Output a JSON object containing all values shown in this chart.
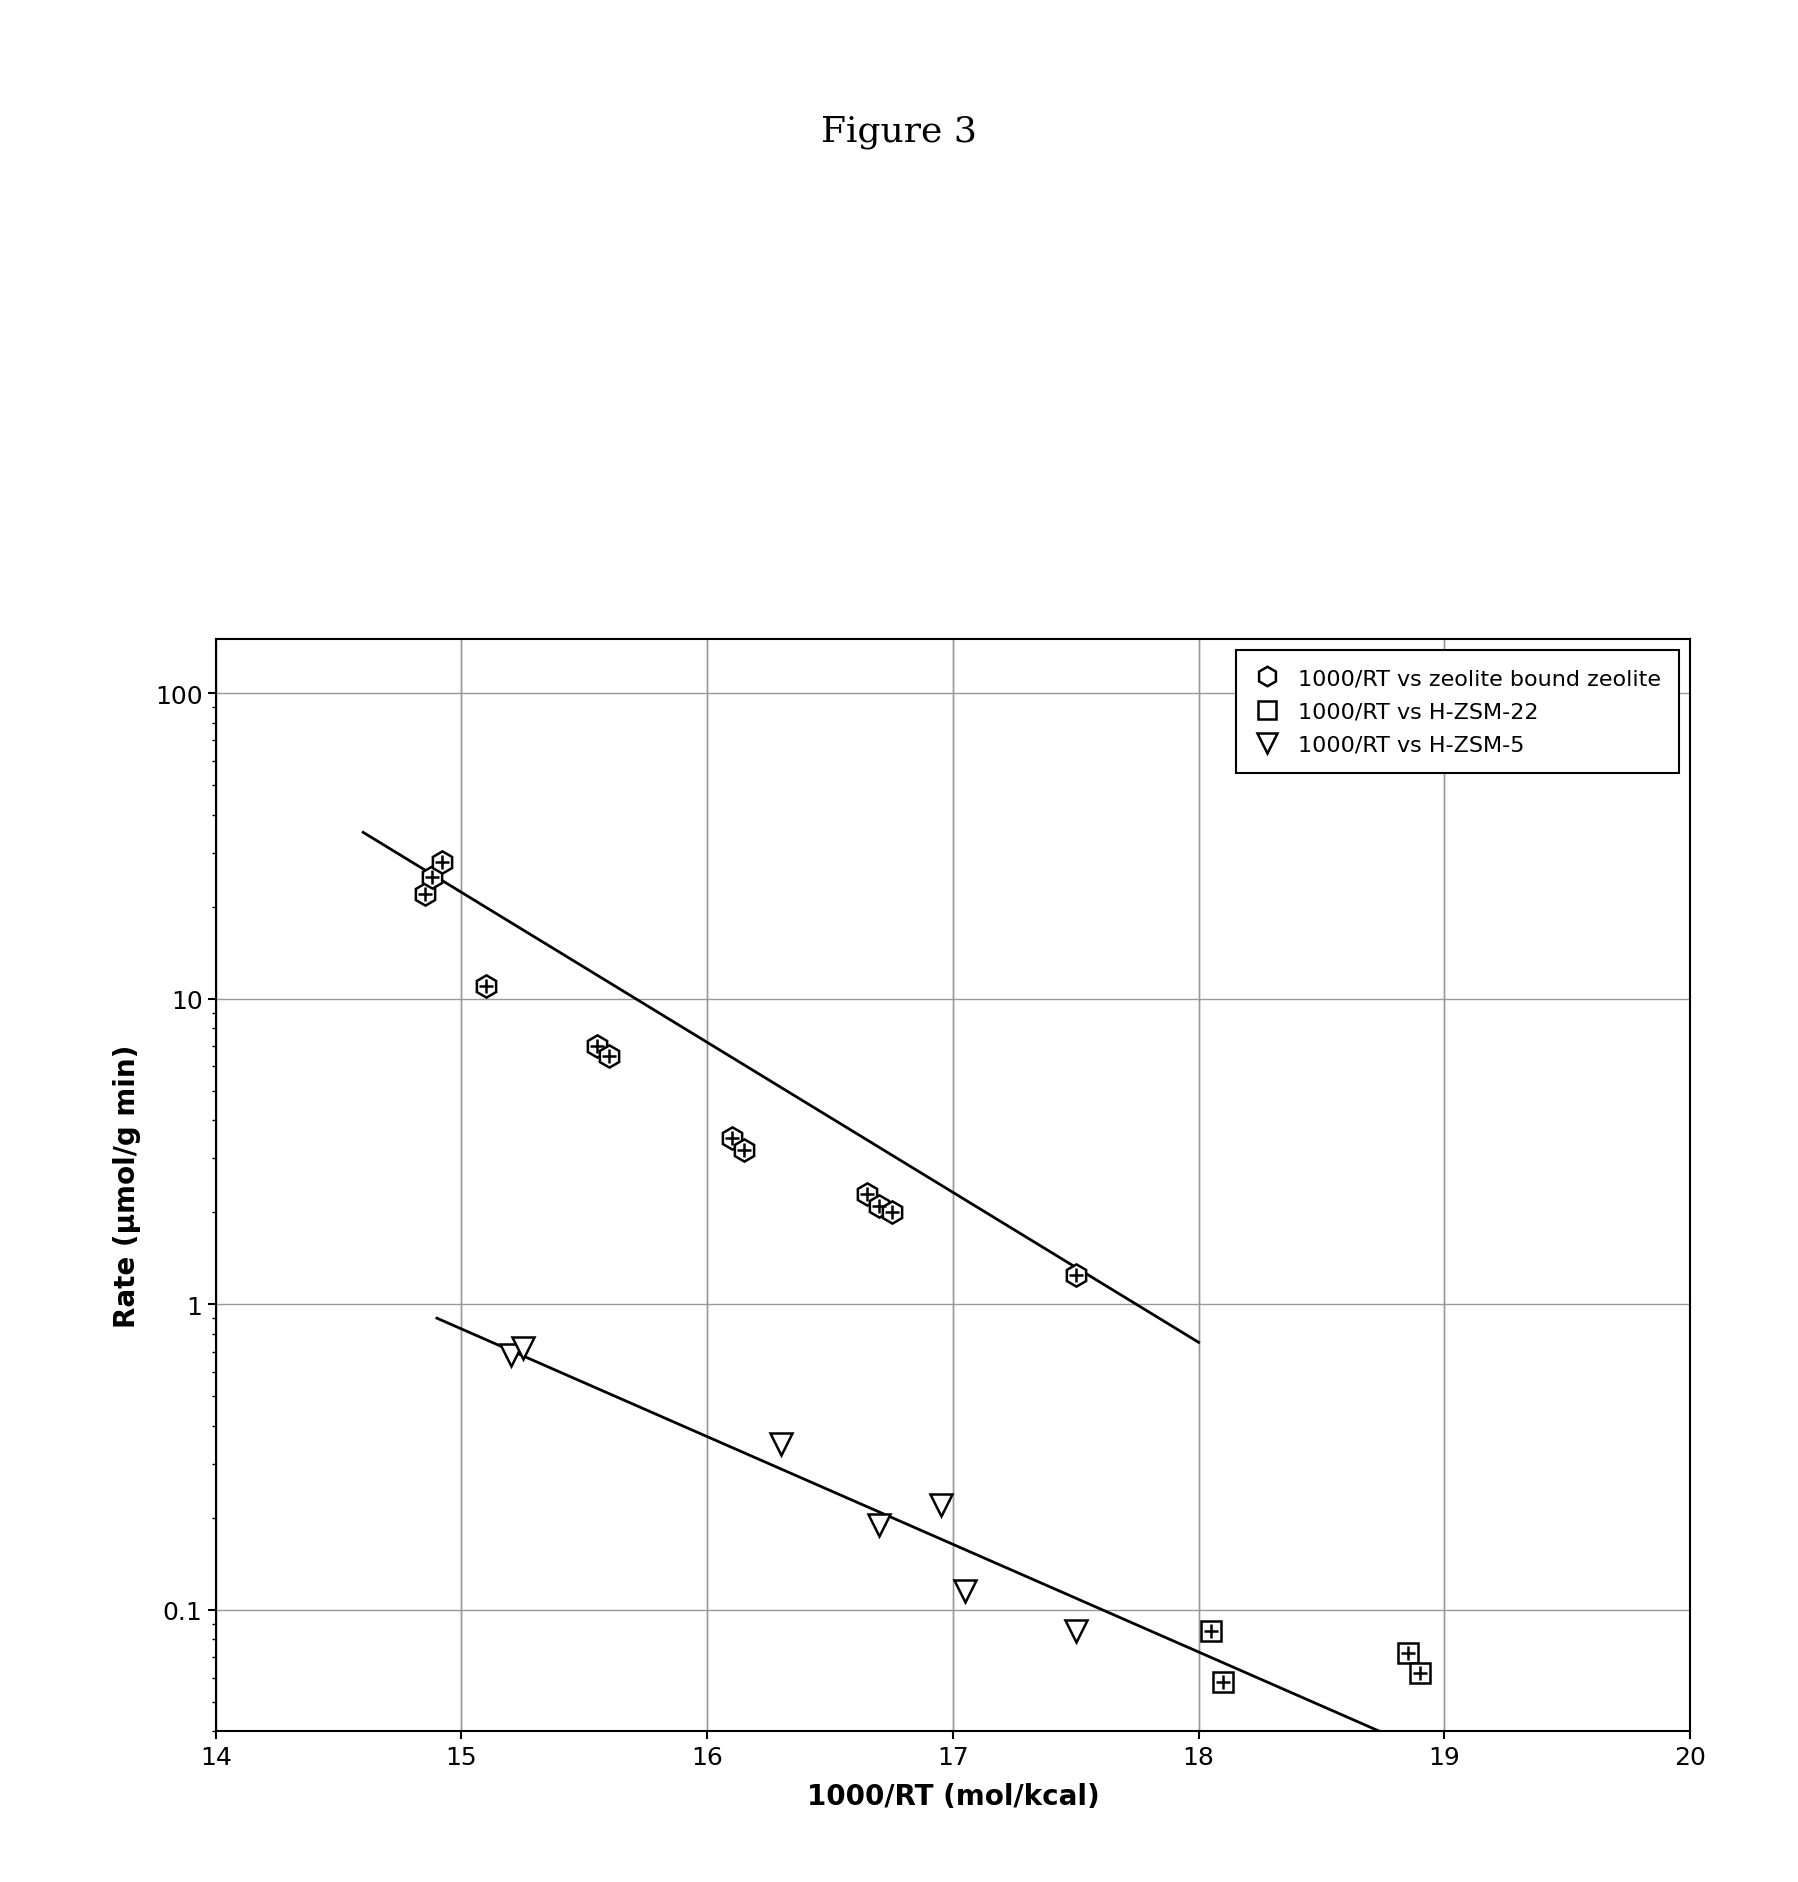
{
  "title": "Figure 3",
  "xlabel": "1000/RT (mol/kcal)",
  "ylabel": "Rate (μmol/g min)",
  "xlim": [
    14,
    20
  ],
  "ylim_log": [
    0.04,
    150
  ],
  "xmajor_ticks": [
    14,
    15,
    16,
    17,
    18,
    19,
    20
  ],
  "yticks_major": [
    0.1,
    1,
    10,
    100
  ],
  "ytick_labels": [
    "0.1",
    "1",
    "10",
    "100"
  ],
  "series_zbz": {
    "label": "1000/RT vs zeolite bound zeolite",
    "x": [
      14.85,
      14.88,
      14.92,
      15.1,
      15.55,
      15.6,
      16.1,
      16.15,
      16.65,
      16.7,
      16.75,
      17.5
    ],
    "y": [
      22,
      25,
      28,
      11,
      7.0,
      6.5,
      3.5,
      3.2,
      2.3,
      2.1,
      2.0,
      1.25
    ]
  },
  "series_zsm22": {
    "label": "1000/RT vs H-ZSM-22",
    "x": [
      18.05,
      18.1,
      18.85,
      18.9
    ],
    "y": [
      0.085,
      0.058,
      0.072,
      0.062
    ]
  },
  "series_zsm5": {
    "label": "1000/RT vs H-ZSM-5",
    "x": [
      15.2,
      15.25,
      16.3,
      16.7,
      16.95,
      17.05,
      17.5
    ],
    "y": [
      0.68,
      0.72,
      0.35,
      0.19,
      0.22,
      0.115,
      0.085
    ]
  },
  "line1_x": [
    14.6,
    18.0
  ],
  "line1_y": [
    35.0,
    0.75
  ],
  "line2_x": [
    14.9,
    18.8
  ],
  "line2_y": [
    0.9,
    0.038
  ],
  "bg_color": "#ffffff",
  "line_color": "#000000",
  "title_fontsize": 26,
  "label_fontsize": 20,
  "tick_fontsize": 18,
  "legend_fontsize": 16
}
